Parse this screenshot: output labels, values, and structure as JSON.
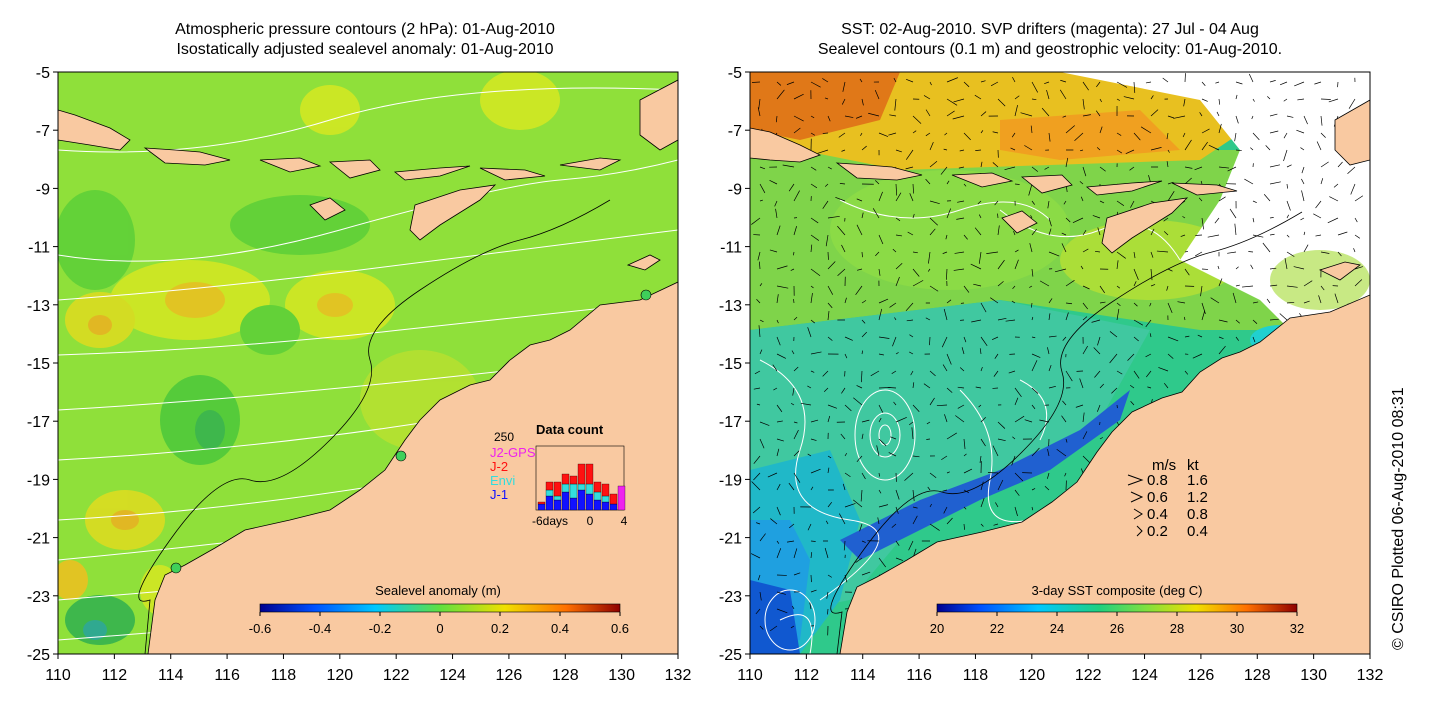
{
  "left_panel": {
    "title_line1": "Atmospheric pressure contours (2 hPa): 01-Aug-2010",
    "title_line2": "Isostatically adjusted sealevel anomaly: 01-Aug-2010",
    "colorbar_label": "Sealevel anomaly (m)",
    "colorbar_ticks": [
      "-0.6",
      "-0.4",
      "-0.2",
      "0",
      "0.2",
      "0.4",
      "0.6"
    ],
    "inset": {
      "title": "Data count",
      "ymax_label": "250",
      "legend": [
        {
          "name": "J2-GPS",
          "color": "#ee22ee"
        },
        {
          "name": "J-2",
          "color": "#ff1111"
        },
        {
          "name": "Envi",
          "color": "#33dddd"
        },
        {
          "name": "J-1",
          "color": "#1111ff"
        }
      ],
      "x_tick_labels": [
        "-6days",
        "0",
        "4"
      ]
    }
  },
  "right_panel": {
    "title_line1": "SST: 02-Aug-2010. SVP drifters (magenta): 27 Jul - 04 Aug",
    "title_line2": "Sealevel contours (0.1 m) and geostrophic velocity: 01-Aug-2010.",
    "colorbar_label": "3-day SST composite (deg C)",
    "colorbar_ticks": [
      "20",
      "22",
      "24",
      "26",
      "28",
      "30",
      "32"
    ],
    "velocity_legend": {
      "header_ms": "m/s",
      "header_kt": "kt",
      "rows": [
        {
          "ms": "0.8",
          "kt": "1.6"
        },
        {
          "ms": "0.6",
          "kt": "1.2"
        },
        {
          "ms": "0.4",
          "kt": "0.8"
        },
        {
          "ms": "0.2",
          "kt": "0.4"
        }
      ]
    }
  },
  "axes": {
    "lat_labels": [
      "-5",
      "-7",
      "-9",
      "-11",
      "-13",
      "-15",
      "-17",
      "-19",
      "-21",
      "-23",
      "-25"
    ],
    "lon_labels": [
      "110",
      "112",
      "114",
      "116",
      "118",
      "120",
      "122",
      "124",
      "126",
      "128",
      "130",
      "132"
    ]
  },
  "credit": "© CSIRO Plotted 06-Aug-2010 08:31",
  "colors": {
    "land": "#f9c9a1",
    "sla_background": "#8fe03a",
    "sst_background": "#2fc98b"
  }
}
